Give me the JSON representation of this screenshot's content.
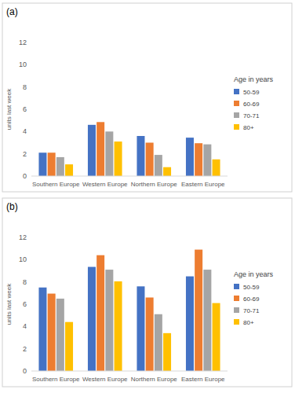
{
  "chart_data": [
    {
      "type": "bar",
      "title": "(a)",
      "y_label": "units last week",
      "legend_title": "Age in years",
      "categories": [
        "Southern Europe",
        "Western Europe",
        "Northern Europe",
        "Eastern Europe"
      ],
      "series": [
        {
          "name": "50-59",
          "color": "#4472c4",
          "values": [
            2.1,
            4.6,
            3.6,
            3.45
          ]
        },
        {
          "name": "60-69",
          "color": "#ed7d31",
          "values": [
            2.1,
            4.85,
            3.0,
            2.95
          ]
        },
        {
          "name": "70-71",
          "color": "#a5a5a5",
          "values": [
            1.7,
            4.0,
            1.9,
            2.85
          ]
        },
        {
          "name": "80+",
          "color": "#ffc000",
          "values": [
            1.05,
            3.1,
            0.8,
            1.5
          ]
        }
      ],
      "ylim": [
        0,
        12
      ],
      "yticks": [
        0,
        2,
        4,
        6,
        8,
        10,
        12
      ],
      "grid": false,
      "legend": "right"
    },
    {
      "type": "bar",
      "title": "(b)",
      "y_label": "units last week",
      "legend_title": "Age in years",
      "categories": [
        "Southern Europe",
        "Western Europe",
        "Northern Europe",
        "Eastern Europe"
      ],
      "series": [
        {
          "name": "50-59",
          "color": "#4472c4",
          "values": [
            7.5,
            9.35,
            7.6,
            8.5
          ]
        },
        {
          "name": "60-69",
          "color": "#ed7d31",
          "values": [
            6.95,
            10.4,
            6.6,
            10.9
          ]
        },
        {
          "name": "70-71",
          "color": "#a5a5a5",
          "values": [
            6.5,
            9.1,
            5.1,
            9.1
          ]
        },
        {
          "name": "80+",
          "color": "#ffc000",
          "values": [
            4.4,
            8.05,
            3.4,
            6.1
          ]
        }
      ],
      "ylim": [
        0,
        12
      ],
      "yticks": [
        0,
        2,
        4,
        6,
        8,
        10,
        12
      ],
      "grid": false,
      "legend": "right"
    }
  ]
}
